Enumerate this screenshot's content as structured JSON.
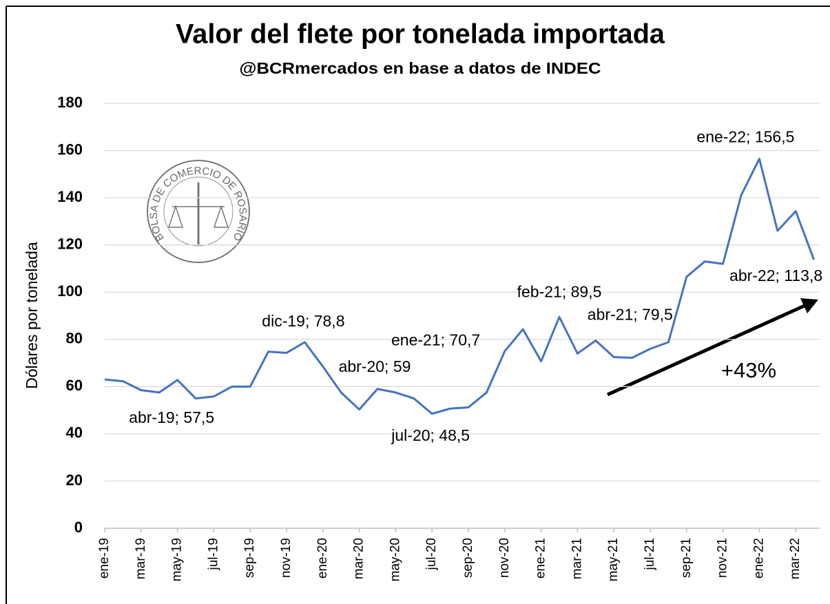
{
  "chart_data": {
    "type": "line",
    "title": "Valor del flete por tonelada importada",
    "subtitle": "@BCRmercados en base a datos de INDEC",
    "y_label": "Dólares por tonelada",
    "watermark": "BOLSA DE COMERCIO DE ROSARIO",
    "annotation": "+43%",
    "categories": [
      "ene-19",
      null,
      "mar-19",
      null,
      "may-19",
      null,
      "jul-19",
      null,
      "sep-19",
      null,
      "nov-19",
      null,
      "ene-20",
      null,
      "mar-20",
      null,
      "may-20",
      null,
      "jul-20",
      null,
      "sep-20",
      null,
      "nov-20",
      null,
      "ene-21",
      null,
      "mar-21",
      null,
      "may-21",
      null,
      "jul-21",
      null,
      "sep-21",
      null,
      "nov-21",
      null,
      "ene-22",
      null,
      "mar-22",
      null
    ],
    "series": [
      {
        "name": "Valor del flete",
        "color": "#4472c4",
        "values": [
          63,
          62.3,
          58.5,
          57.5,
          62.8,
          55,
          55.8,
          60,
          60,
          74.8,
          74.3,
          78.8,
          68.5,
          57.5,
          50.3,
          59,
          57.5,
          55,
          48.5,
          50.7,
          51.2,
          57.5,
          75,
          84.3,
          70.7,
          89.5,
          74,
          79.5,
          72.5,
          72.2,
          76,
          78.8,
          106.5,
          113,
          112,
          141,
          156.5,
          126,
          134.3,
          113.8
        ],
        "value_labels": [
          null,
          null,
          null,
          "abr-19; 57,5",
          null,
          null,
          null,
          null,
          null,
          null,
          null,
          "dic-19; 78,8",
          null,
          null,
          null,
          "abr-20; 59",
          null,
          null,
          "jul-20; 48,5",
          null,
          null,
          null,
          null,
          null,
          "ene-21; 70,7",
          "feb-21; 89,5",
          null,
          "abr-21; 79,5",
          null,
          null,
          null,
          null,
          null,
          null,
          null,
          null,
          "ene-22; 156,5",
          null,
          null,
          "abr-22; 113,8"
        ]
      }
    ],
    "ylim": [
      0,
      180
    ],
    "yticks": [
      0,
      20,
      40,
      60,
      80,
      100,
      120,
      140,
      160,
      180
    ],
    "grid": true
  }
}
